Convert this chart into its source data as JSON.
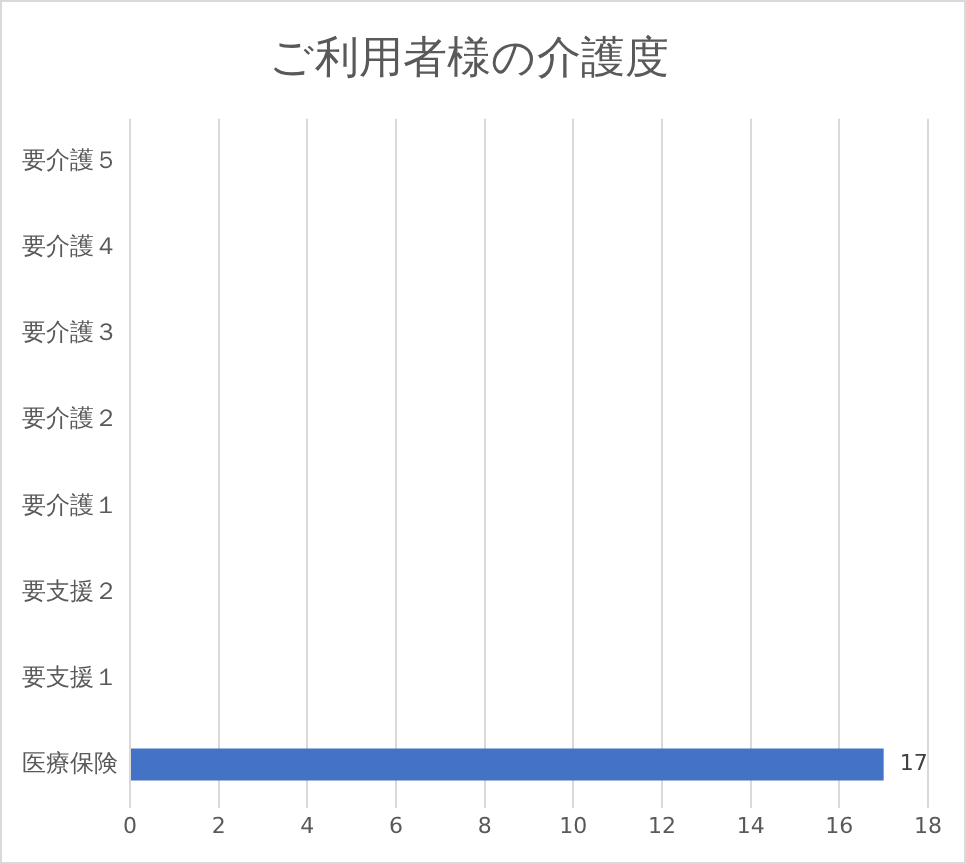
{
  "chart_data": {
    "type": "bar",
    "orientation": "horizontal",
    "title": "ご利用者様の介護度",
    "categories": [
      "要介護５",
      "要介護４",
      "要介護３",
      "要介護２",
      "要介護１",
      "要支援２",
      "要支援１",
      "医療保険"
    ],
    "values": [
      0,
      0,
      0,
      0,
      0,
      0,
      0,
      17
    ],
    "value_labels": [
      null,
      null,
      null,
      null,
      null,
      null,
      null,
      "17"
    ],
    "color": "#4472c4",
    "xlim": [
      0,
      18
    ],
    "xticks": [
      0,
      2,
      4,
      6,
      8,
      10,
      12,
      14,
      16,
      18
    ],
    "grid": "x",
    "legend": false
  }
}
